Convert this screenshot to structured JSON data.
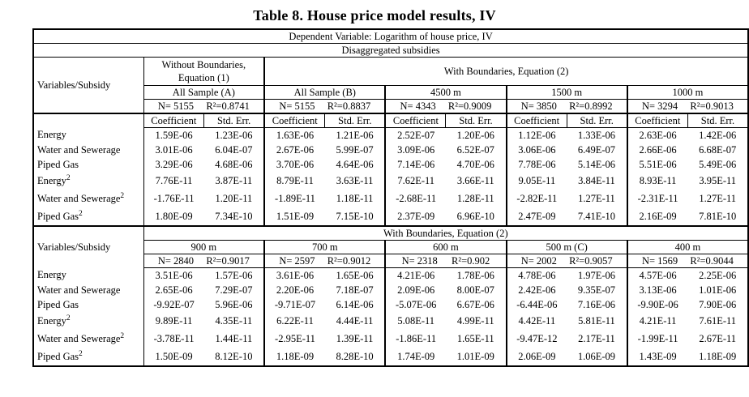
{
  "title": "Table 8. House price model results, IV",
  "header": {
    "dependent_variable": "Dependent Variable: Logarithm of house price, IV",
    "subsidies": "Disaggregated subsidies",
    "row_label": "Variables/Subsidy",
    "coefficient": "Coefficient",
    "std_err": "Std. Err."
  },
  "colors": {
    "text": "#000000",
    "background": "#ffffff",
    "border": "#000000"
  },
  "section1": {
    "top_left": "Without Boundaries, Equation (1)",
    "top_right": "With Boundaries, Equation (2)",
    "groups": [
      {
        "name": "All Sample (A)",
        "n": "N= 5155",
        "r2": "R²=0.8741"
      },
      {
        "name": "All Sample (B)",
        "n": "N= 5155",
        "r2": "R²=0.8837"
      },
      {
        "name": "4500 m",
        "n": "N= 4343",
        "r2": "R²=0.9009"
      },
      {
        "name": "1500 m",
        "n": "N= 3850",
        "r2": "R²=0.8992"
      },
      {
        "name": "1000 m",
        "n": "N= 3294",
        "r2": "R²=0.9013"
      }
    ],
    "rows": [
      {
        "label": "Energy",
        "sup": "",
        "values": [
          "1.59E-06",
          "1.23E-06",
          "1.63E-06",
          "1.21E-06",
          "2.52E-07",
          "1.20E-06",
          "1.12E-06",
          "1.33E-06",
          "2.63E-06",
          "1.42E-06"
        ]
      },
      {
        "label": "Water and Sewerage",
        "sup": "",
        "values": [
          "3.01E-06",
          "6.04E-07",
          "2.67E-06",
          "5.99E-07",
          "3.09E-06",
          "6.52E-07",
          "3.06E-06",
          "6.49E-07",
          "2.66E-06",
          "6.68E-07"
        ]
      },
      {
        "label": "Piped Gas",
        "sup": "",
        "values": [
          "3.29E-06",
          "4.68E-06",
          "3.70E-06",
          "4.64E-06",
          "7.14E-06",
          "4.70E-06",
          "7.78E-06",
          "5.14E-06",
          "5.51E-06",
          "5.49E-06"
        ]
      },
      {
        "label": "Energy",
        "sup": "2",
        "values": [
          "7.76E-11",
          "3.87E-11",
          "8.79E-11",
          "3.63E-11",
          "7.62E-11",
          "3.66E-11",
          "9.05E-11",
          "3.84E-11",
          "8.93E-11",
          "3.95E-11"
        ]
      },
      {
        "label": "Water and Sewerage",
        "sup": "2",
        "values": [
          "-1.76E-11",
          "1.20E-11",
          "-1.89E-11",
          "1.18E-11",
          "-2.68E-11",
          "1.28E-11",
          "-2.82E-11",
          "1.27E-11",
          "-2.31E-11",
          "1.27E-11"
        ]
      },
      {
        "label": "Piped Gas",
        "sup": "2",
        "values": [
          "1.80E-09",
          "7.34E-10",
          "1.51E-09",
          "7.15E-10",
          "2.37E-09",
          "6.96E-10",
          "2.47E-09",
          "7.41E-10",
          "2.16E-09",
          "7.81E-10"
        ]
      }
    ]
  },
  "section2": {
    "top": "With Boundaries, Equation (2)",
    "groups": [
      {
        "name": "900 m",
        "n": "N= 2840",
        "r2": "R²=0.9017"
      },
      {
        "name": "700 m",
        "n": "N= 2597",
        "r2": "R²=0.9012"
      },
      {
        "name": "600 m",
        "n": "N= 2318",
        "r2": "R²=0.902"
      },
      {
        "name": "500 m (C)",
        "n": "N= 2002",
        "r2": "R²=0.9057"
      },
      {
        "name": "400 m",
        "n": "N= 1569",
        "r2": "R²=0.9044"
      }
    ],
    "rows": [
      {
        "label": "Energy",
        "sup": "",
        "values": [
          "3.51E-06",
          "1.57E-06",
          "3.61E-06",
          "1.65E-06",
          "4.21E-06",
          "1.78E-06",
          "4.78E-06",
          "1.97E-06",
          "4.57E-06",
          "2.25E-06"
        ]
      },
      {
        "label": "Water and Sewerage",
        "sup": "",
        "values": [
          "2.65E-06",
          "7.29E-07",
          "2.20E-06",
          "7.18E-07",
          "2.09E-06",
          "8.00E-07",
          "2.42E-06",
          "9.35E-07",
          "3.13E-06",
          "1.01E-06"
        ]
      },
      {
        "label": "Piped Gas",
        "sup": "",
        "values": [
          "-9.92E-07",
          "5.96E-06",
          "-9.71E-07",
          "6.14E-06",
          "-5.07E-06",
          "6.67E-06",
          "-6.44E-06",
          "7.16E-06",
          "-9.90E-06",
          "7.90E-06"
        ]
      },
      {
        "label": "Energy",
        "sup": "2",
        "values": [
          "9.89E-11",
          "4.35E-11",
          "6.22E-11",
          "4.44E-11",
          "5.08E-11",
          "4.99E-11",
          "4.42E-11",
          "5.81E-11",
          "4.21E-11",
          "7.61E-11"
        ]
      },
      {
        "label": "Water and Sewerage",
        "sup": "2",
        "values": [
          "-3.78E-11",
          "1.44E-11",
          "-2.95E-11",
          "1.39E-11",
          "-1.86E-11",
          "1.65E-11",
          "-9.47E-12",
          "2.17E-11",
          "-1.99E-11",
          "2.67E-11"
        ]
      },
      {
        "label": "Piped Gas",
        "sup": "2",
        "values": [
          "1.50E-09",
          "8.12E-10",
          "1.18E-09",
          "8.28E-10",
          "1.74E-09",
          "1.01E-09",
          "2.06E-09",
          "1.06E-09",
          "1.43E-09",
          "1.18E-09"
        ]
      }
    ]
  }
}
